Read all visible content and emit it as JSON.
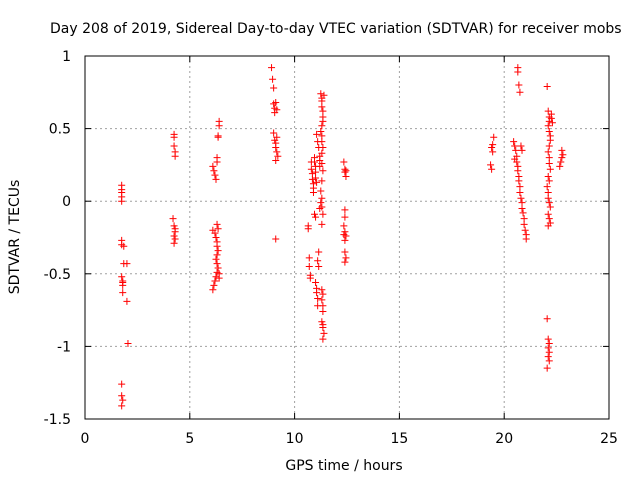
{
  "chart_data": {
    "type": "scatter",
    "title": "Day 208 of 2019, Sidereal Day-to-day VTEC variation (SDTVAR) for receiver mobs",
    "xlabel": "GPS time / hours",
    "ylabel": "SDTVAR / TECUs",
    "xlim": [
      0,
      25
    ],
    "ylim": [
      -1.5,
      1
    ],
    "xticks": [
      0,
      5,
      10,
      15,
      20,
      25
    ],
    "xtick_labels": [
      "0",
      "5",
      "10",
      "15",
      "20",
      "25"
    ],
    "yticks": [
      -1.5,
      -1,
      -0.5,
      0,
      0.5,
      1
    ],
    "ytick_labels": [
      "-1.5",
      "-1",
      "-0.5",
      "0",
      "0.5",
      "1"
    ],
    "grid": true,
    "marker": "+",
    "color": "#ff0000",
    "series": [
      {
        "name": "SDTVAR",
        "points": [
          [
            1.75,
            0.11
          ],
          [
            1.75,
            0.08
          ],
          [
            1.75,
            0.06
          ],
          [
            1.75,
            0.03
          ],
          [
            1.75,
            0.0
          ],
          [
            1.75,
            -0.27
          ],
          [
            1.75,
            -0.3
          ],
          [
            1.75,
            -0.52
          ],
          [
            1.8,
            -0.55
          ],
          [
            1.8,
            -0.58
          ],
          [
            1.8,
            -0.63
          ],
          [
            1.85,
            -0.43
          ],
          [
            1.85,
            -0.31
          ],
          [
            1.8,
            -0.56
          ],
          [
            2.0,
            -0.43
          ],
          [
            2.0,
            -0.69
          ],
          [
            2.05,
            -0.98
          ],
          [
            1.75,
            -1.26
          ],
          [
            1.75,
            -1.34
          ],
          [
            1.8,
            -1.37
          ],
          [
            1.75,
            -1.41
          ],
          [
            4.25,
            0.46
          ],
          [
            4.25,
            0.44
          ],
          [
            4.25,
            0.38
          ],
          [
            4.3,
            0.34
          ],
          [
            4.3,
            0.31
          ],
          [
            4.2,
            -0.12
          ],
          [
            4.25,
            -0.17
          ],
          [
            4.3,
            -0.19
          ],
          [
            4.3,
            -0.21
          ],
          [
            4.25,
            -0.24
          ],
          [
            4.3,
            -0.26
          ],
          [
            4.25,
            -0.29
          ],
          [
            6.1,
            0.24
          ],
          [
            6.15,
            0.21
          ],
          [
            6.2,
            0.18
          ],
          [
            6.25,
            0.15
          ],
          [
            6.3,
            0.3
          ],
          [
            6.35,
            0.45
          ],
          [
            6.4,
            0.52
          ],
          [
            6.4,
            0.55
          ],
          [
            6.35,
            0.44
          ],
          [
            6.3,
            0.27
          ],
          [
            6.1,
            -0.2
          ],
          [
            6.2,
            -0.22
          ],
          [
            6.25,
            -0.25
          ],
          [
            6.3,
            -0.28
          ],
          [
            6.3,
            -0.31
          ],
          [
            6.35,
            -0.34
          ],
          [
            6.3,
            -0.37
          ],
          [
            6.25,
            -0.4
          ],
          [
            6.3,
            -0.43
          ],
          [
            6.35,
            -0.46
          ],
          [
            6.3,
            -0.49
          ],
          [
            6.25,
            -0.52
          ],
          [
            6.2,
            -0.55
          ],
          [
            6.15,
            -0.58
          ],
          [
            6.1,
            -0.61
          ],
          [
            6.3,
            -0.16
          ],
          [
            6.35,
            -0.19
          ],
          [
            6.4,
            -0.5
          ],
          [
            6.4,
            -0.53
          ],
          [
            8.9,
            0.92
          ],
          [
            8.95,
            0.84
          ],
          [
            9.0,
            0.78
          ],
          [
            9.0,
            0.67
          ],
          [
            9.05,
            0.64
          ],
          [
            9.05,
            0.61
          ],
          [
            9.1,
            0.68
          ],
          [
            9.15,
            0.63
          ],
          [
            9.0,
            0.47
          ],
          [
            9.05,
            0.42
          ],
          [
            9.1,
            0.4
          ],
          [
            9.1,
            0.37
          ],
          [
            9.15,
            0.34
          ],
          [
            9.2,
            0.31
          ],
          [
            9.1,
            0.28
          ],
          [
            9.15,
            0.44
          ],
          [
            9.1,
            -0.26
          ],
          [
            10.65,
            -0.17
          ],
          [
            10.65,
            -0.19
          ],
          [
            10.7,
            -0.39
          ],
          [
            10.7,
            -0.45
          ],
          [
            10.75,
            -0.51
          ],
          [
            10.75,
            -0.53
          ],
          [
            10.8,
            0.27
          ],
          [
            10.8,
            0.22
          ],
          [
            10.85,
            0.19
          ],
          [
            10.85,
            0.15
          ],
          [
            10.9,
            0.12
          ],
          [
            10.9,
            0.09
          ],
          [
            10.9,
            0.06
          ],
          [
            10.95,
            0.3
          ],
          [
            10.95,
            0.27
          ],
          [
            11.0,
            0.24
          ],
          [
            11.0,
            0.2
          ],
          [
            11.0,
            0.16
          ],
          [
            11.05,
            0.13
          ],
          [
            10.95,
            -0.09
          ],
          [
            11.0,
            -0.11
          ],
          [
            11.0,
            -0.56
          ],
          [
            11.05,
            -0.6
          ],
          [
            11.05,
            -0.63
          ],
          [
            11.1,
            -0.67
          ],
          [
            11.1,
            -0.72
          ],
          [
            11.1,
            -0.41
          ],
          [
            11.15,
            -0.35
          ],
          [
            11.15,
            -0.45
          ],
          [
            11.05,
            0.46
          ],
          [
            11.1,
            0.41
          ],
          [
            11.15,
            0.37
          ],
          [
            11.2,
            0.31
          ],
          [
            11.2,
            0.28
          ],
          [
            11.2,
            0.24
          ],
          [
            11.2,
            -0.05
          ],
          [
            11.25,
            -0.01
          ],
          [
            11.25,
            0.74
          ],
          [
            11.3,
            0.71
          ],
          [
            11.3,
            0.69
          ],
          [
            11.3,
            0.65
          ],
          [
            11.35,
            0.62
          ],
          [
            11.35,
            0.58
          ],
          [
            11.35,
            0.55
          ],
          [
            11.3,
            0.52
          ],
          [
            11.25,
            0.48
          ],
          [
            11.3,
            0.45
          ],
          [
            11.3,
            0.41
          ],
          [
            11.35,
            0.37
          ],
          [
            11.3,
            0.33
          ],
          [
            11.3,
            0.26
          ],
          [
            11.35,
            0.21
          ],
          [
            11.3,
            0.14
          ],
          [
            11.25,
            0.07
          ],
          [
            11.3,
            0.02
          ],
          [
            11.3,
            -0.04
          ],
          [
            11.35,
            -0.09
          ],
          [
            11.3,
            -0.16
          ],
          [
            11.3,
            -0.61
          ],
          [
            11.35,
            -0.64
          ],
          [
            11.3,
            -0.68
          ],
          [
            11.35,
            -0.72
          ],
          [
            11.35,
            -0.76
          ],
          [
            11.3,
            -0.83
          ],
          [
            11.35,
            -0.85
          ],
          [
            11.35,
            -0.87
          ],
          [
            11.4,
            -0.91
          ],
          [
            11.35,
            -0.95
          ],
          [
            11.4,
            0.73
          ],
          [
            12.35,
            0.27
          ],
          [
            12.4,
            0.22
          ],
          [
            12.4,
            0.2
          ],
          [
            12.45,
            0.17
          ],
          [
            12.45,
            0.21
          ],
          [
            12.4,
            -0.06
          ],
          [
            12.4,
            -0.11
          ],
          [
            12.35,
            -0.17
          ],
          [
            12.4,
            -0.21
          ],
          [
            12.45,
            -0.24
          ],
          [
            12.4,
            -0.27
          ],
          [
            12.4,
            -0.35
          ],
          [
            12.45,
            -0.39
          ],
          [
            12.4,
            -0.42
          ],
          [
            12.35,
            -0.23
          ],
          [
            19.4,
            0.37
          ],
          [
            19.45,
            0.34
          ],
          [
            19.5,
            0.44
          ],
          [
            19.45,
            0.39
          ],
          [
            19.35,
            0.25
          ],
          [
            19.4,
            0.22
          ],
          [
            20.45,
            0.41
          ],
          [
            20.5,
            0.38
          ],
          [
            20.55,
            0.35
          ],
          [
            20.6,
            0.31
          ],
          [
            20.6,
            0.27
          ],
          [
            20.65,
            0.24
          ],
          [
            20.65,
            0.21
          ],
          [
            20.7,
            0.17
          ],
          [
            20.7,
            0.14
          ],
          [
            20.75,
            0.1
          ],
          [
            20.75,
            0.06
          ],
          [
            20.8,
            0.02
          ],
          [
            20.85,
            -0.01
          ],
          [
            20.85,
            -0.05
          ],
          [
            20.9,
            -0.08
          ],
          [
            20.95,
            -0.12
          ],
          [
            20.95,
            -0.16
          ],
          [
            21.0,
            -0.2
          ],
          [
            21.05,
            -0.23
          ],
          [
            21.05,
            -0.26
          ],
          [
            20.8,
            0.38
          ],
          [
            20.85,
            0.35
          ],
          [
            20.5,
            0.29
          ],
          [
            20.65,
            0.92
          ],
          [
            20.65,
            0.89
          ],
          [
            20.7,
            0.8
          ],
          [
            20.75,
            0.75
          ],
          [
            22.05,
            0.79
          ],
          [
            22.1,
            0.62
          ],
          [
            22.15,
            0.58
          ],
          [
            22.15,
            0.55
          ],
          [
            22.1,
            0.52
          ],
          [
            22.15,
            0.48
          ],
          [
            22.2,
            0.45
          ],
          [
            22.2,
            0.42
          ],
          [
            22.15,
            0.38
          ],
          [
            22.1,
            0.34
          ],
          [
            22.15,
            0.3
          ],
          [
            22.15,
            0.26
          ],
          [
            22.2,
            0.22
          ],
          [
            22.1,
            0.17
          ],
          [
            22.15,
            0.14
          ],
          [
            22.05,
            0.1
          ],
          [
            22.1,
            0.06
          ],
          [
            22.1,
            0.02
          ],
          [
            22.15,
            -0.01
          ],
          [
            22.2,
            -0.04
          ],
          [
            22.1,
            -0.09
          ],
          [
            22.15,
            -0.12
          ],
          [
            22.2,
            -0.15
          ],
          [
            22.1,
            -0.17
          ],
          [
            22.25,
            0.6
          ],
          [
            22.25,
            0.57
          ],
          [
            22.3,
            0.54
          ],
          [
            22.05,
            -0.81
          ],
          [
            22.1,
            -0.95
          ],
          [
            22.15,
            -0.98
          ],
          [
            22.1,
            -1.01
          ],
          [
            22.15,
            -1.04
          ],
          [
            22.1,
            -1.07
          ],
          [
            22.15,
            -1.1
          ],
          [
            22.05,
            -1.15
          ],
          [
            22.75,
            0.35
          ],
          [
            22.8,
            0.32
          ],
          [
            22.75,
            0.3
          ],
          [
            22.7,
            0.27
          ],
          [
            22.65,
            0.24
          ]
        ]
      }
    ]
  }
}
